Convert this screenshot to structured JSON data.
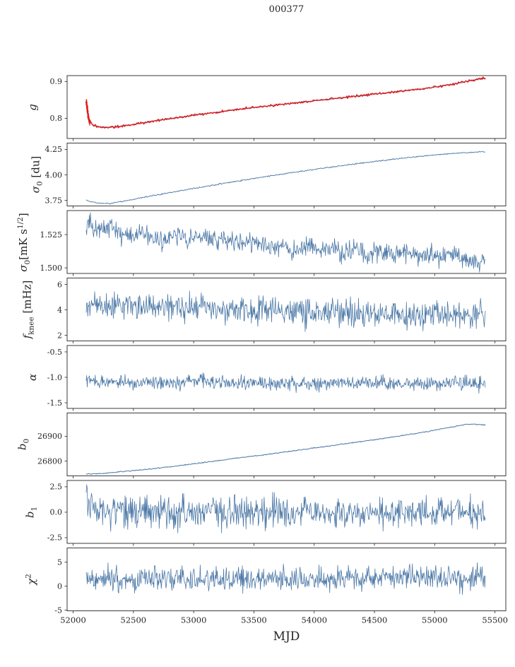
{
  "title": "000377",
  "xlabel": "MJD",
  "colors": {
    "line_blue": "#4d79a7",
    "data_red": "#df1b1b",
    "axis": "#262626",
    "background": "#ffffff"
  },
  "chart_data": {
    "type": "line",
    "title": "000377",
    "xlabel": "MJD",
    "x_lim": [
      51950,
      55590
    ],
    "x_ticks": [
      52000,
      52500,
      53000,
      53500,
      54000,
      54500,
      55000,
      55500
    ],
    "x_data_range": [
      52108,
      55420
    ],
    "panels": [
      {
        "name": "g",
        "ylabel": "g",
        "ylabel_html": "<i>g</i>",
        "ylim": [
          0.745,
          0.916
        ],
        "yticks": [
          0.8,
          0.9
        ],
        "ytick_labels": [
          "0.8",
          "0.9"
        ],
        "series": [
          {
            "name": "gain-fit",
            "color": "#4d79a7",
            "lw": 1.0,
            "noise": 0.0007,
            "n": 520,
            "trend": [
              [
                52108,
                0.84
              ],
              [
                52120,
                0.815
              ],
              [
                52135,
                0.795
              ],
              [
                52160,
                0.783
              ],
              [
                52200,
                0.7775
              ],
              [
                52260,
                0.7755
              ],
              [
                52330,
                0.776
              ],
              [
                52420,
                0.779
              ],
              [
                52520,
                0.7845
              ],
              [
                52650,
                0.7915
              ],
              [
                52800,
                0.799
              ],
              [
                52950,
                0.806
              ],
              [
                53100,
                0.8125
              ],
              [
                53250,
                0.819
              ],
              [
                53400,
                0.825
              ],
              [
                53550,
                0.831
              ],
              [
                53700,
                0.8365
              ],
              [
                53850,
                0.842
              ],
              [
                54000,
                0.8475
              ],
              [
                54150,
                0.853
              ],
              [
                54300,
                0.8585
              ],
              [
                54450,
                0.864
              ],
              [
                54600,
                0.8695
              ],
              [
                54750,
                0.8745
              ],
              [
                54900,
                0.88
              ],
              [
                55000,
                0.8845
              ],
              [
                55100,
                0.89
              ],
              [
                55180,
                0.8945
              ],
              [
                55260,
                0.9
              ],
              [
                55330,
                0.9045
              ],
              [
                55420,
                0.909
              ]
            ]
          },
          {
            "name": "gain-data",
            "color": "#df1b1b",
            "lw": 1.4,
            "noise": 0.0016,
            "n": 520,
            "trend": [
              [
                52108,
                0.84
              ],
              [
                52120,
                0.815
              ],
              [
                52135,
                0.795
              ],
              [
                52160,
                0.783
              ],
              [
                52200,
                0.7775
              ],
              [
                52260,
                0.7755
              ],
              [
                52330,
                0.776
              ],
              [
                52420,
                0.779
              ],
              [
                52520,
                0.7845
              ],
              [
                52650,
                0.7915
              ],
              [
                52800,
                0.799
              ],
              [
                52950,
                0.806
              ],
              [
                53100,
                0.8125
              ],
              [
                53250,
                0.819
              ],
              [
                53400,
                0.825
              ],
              [
                53550,
                0.831
              ],
              [
                53700,
                0.8365
              ],
              [
                53850,
                0.842
              ],
              [
                54000,
                0.8475
              ],
              [
                54150,
                0.853
              ],
              [
                54300,
                0.8585
              ],
              [
                54450,
                0.864
              ],
              [
                54600,
                0.8695
              ],
              [
                54750,
                0.8745
              ],
              [
                54900,
                0.88
              ],
              [
                55000,
                0.8845
              ],
              [
                55100,
                0.89
              ],
              [
                55180,
                0.8945
              ],
              [
                55260,
                0.9
              ],
              [
                55330,
                0.9045
              ],
              [
                55420,
                0.909
              ]
            ],
            "errorbars": [
              [
                52109,
                0.843,
                0.009
              ],
              [
                52112,
                0.838,
                0.013
              ],
              [
                52115,
                0.831,
                0.015
              ],
              [
                52118,
                0.824,
                0.012
              ],
              [
                52121,
                0.817,
                0.017
              ],
              [
                52124,
                0.81,
                0.012
              ],
              [
                52127,
                0.804,
                0.01
              ],
              [
                52130,
                0.798,
                0.009
              ],
              [
                52134,
                0.792,
                0.008
              ],
              [
                52138,
                0.787,
                0.007
              ]
            ]
          }
        ]
      },
      {
        "name": "sigma0-du",
        "ylabel": "sigma_0 [du]",
        "ylabel_html": "<i>σ</i><sub>0</sub> <span class=\"up\">[du]</span>",
        "ylim": [
          3.695,
          4.312
        ],
        "yticks": [
          3.75,
          4.0,
          4.25
        ],
        "ytick_labels": [
          "3.75",
          "4.00",
          "4.25"
        ],
        "series": [
          {
            "name": "sigma0-du",
            "color": "#4d79a7",
            "lw": 0.9,
            "noise": 0.003,
            "n": 650,
            "trend": [
              [
                52108,
                3.75
              ],
              [
                52150,
                3.735
              ],
              [
                52220,
                3.722
              ],
              [
                52300,
                3.718
              ],
              [
                52600,
                3.783
              ],
              [
                52900,
                3.846
              ],
              [
                53200,
                3.907
              ],
              [
                53500,
                3.965
              ],
              [
                53800,
                4.019
              ],
              [
                54100,
                4.07
              ],
              [
                54400,
                4.117
              ],
              [
                54700,
                4.16
              ],
              [
                55000,
                4.196
              ],
              [
                55200,
                4.215
              ],
              [
                55420,
                4.228
              ]
            ]
          }
        ]
      },
      {
        "name": "sigma0-mk",
        "ylabel": "sigma_0 [mK s^1/2]",
        "ylabel_html": "<i>σ</i><sub>0</sub><span class=\"up\">[mK s<sup>1/2</sup>]</span>",
        "ylim": [
          1.4958,
          1.5431
        ],
        "yticks": [
          1.5,
          1.525
        ],
        "ytick_labels": [
          "1.500",
          "1.525"
        ],
        "series": [
          {
            "name": "sigma0-mk",
            "color": "#4d79a7",
            "lw": 0.8,
            "noise": 0.0035,
            "n": 750,
            "trend": [
              [
                52108,
                1.528
              ],
              [
                52128,
                1.5355
              ],
              [
                52160,
                1.5295
              ],
              [
                52230,
                1.529
              ],
              [
                52300,
                1.531
              ],
              [
                52380,
                1.526
              ],
              [
                52470,
                1.522
              ],
              [
                52560,
                1.527
              ],
              [
                52650,
                1.523
              ],
              [
                52750,
                1.52
              ],
              [
                52850,
                1.5245
              ],
              [
                52950,
                1.521
              ],
              [
                53050,
                1.5235
              ],
              [
                53150,
                1.519
              ],
              [
                53250,
                1.5215
              ],
              [
                53350,
                1.518
              ],
              [
                53450,
                1.5205
              ],
              [
                53550,
                1.517
              ],
              [
                53650,
                1.5145
              ],
              [
                53750,
                1.517
              ],
              [
                53850,
                1.5135
              ],
              [
                53950,
                1.516
              ],
              [
                54050,
                1.5125
              ],
              [
                54150,
                1.515
              ],
              [
                54250,
                1.5115
              ],
              [
                54350,
                1.5135
              ],
              [
                54450,
                1.51
              ],
              [
                54550,
                1.512
              ],
              [
                54650,
                1.509
              ],
              [
                54750,
                1.511
              ],
              [
                54850,
                1.5075
              ],
              [
                54950,
                1.51
              ],
              [
                55050,
                1.5065
              ],
              [
                55150,
                1.511
              ],
              [
                55250,
                1.506
              ],
              [
                55330,
                1.503
              ],
              [
                55420,
                1.506
              ]
            ]
          }
        ]
      },
      {
        "name": "fknee",
        "ylabel": "f_knee [mHz]",
        "ylabel_html": "<i>f</i><sub>knee</sub> <span class=\"up\">[mHz]</span>",
        "ylim": [
          1.56,
          6.5
        ],
        "yticks": [
          2,
          4,
          6
        ],
        "ytick_labels": [
          "2",
          "4",
          "6"
        ],
        "series": [
          {
            "name": "fknee",
            "color": "#4d79a7",
            "lw": 0.8,
            "noise": 0.55,
            "n": 750,
            "trend": [
              [
                52108,
                4.45
              ],
              [
                52300,
                4.35
              ],
              [
                52600,
                4.28
              ],
              [
                52900,
                4.18
              ],
              [
                53200,
                4.05
              ],
              [
                53500,
                3.95
              ],
              [
                53800,
                3.85
              ],
              [
                54100,
                3.75
              ],
              [
                54400,
                3.68
              ],
              [
                54700,
                3.62
              ],
              [
                55000,
                3.58
              ],
              [
                55200,
                3.56
              ],
              [
                55420,
                3.55
              ]
            ]
          }
        ]
      },
      {
        "name": "alpha",
        "ylabel": "alpha",
        "ylabel_html": "<i>α</i>",
        "ylim": [
          -1.611,
          -0.375
        ],
        "yticks": [
          -1.5,
          -1.0,
          -0.5
        ],
        "ytick_labels": [
          "-1.5",
          "-1.0",
          "-0.5"
        ],
        "series": [
          {
            "name": "alpha",
            "color": "#4d79a7",
            "lw": 0.8,
            "noise": 0.068,
            "n": 750,
            "trend": [
              [
                52108,
                -1.09
              ],
              [
                53000,
                -1.1
              ],
              [
                54000,
                -1.11
              ],
              [
                55420,
                -1.12
              ]
            ]
          }
        ]
      },
      {
        "name": "b0",
        "ylabel": "b_0",
        "ylabel_html": "<i>b</i><sub>0</sub>",
        "ylim": [
          26740,
          26994
        ],
        "yticks": [
          26800,
          26900
        ],
        "ytick_labels": [
          "26800",
          "26900"
        ],
        "series": [
          {
            "name": "b0",
            "color": "#4d79a7",
            "lw": 1.0,
            "noise": 0.9,
            "n": 650,
            "trend": [
              [
                52108,
                26747
              ],
              [
                52250,
                26750
              ],
              [
                52400,
                26757
              ],
              [
                52550,
                26763
              ],
              [
                52700,
                26771
              ],
              [
                52850,
                26779
              ],
              [
                53000,
                26789
              ],
              [
                53150,
                26798
              ],
              [
                53300,
                26808
              ],
              [
                53450,
                26817
              ],
              [
                53600,
                26826
              ],
              [
                53750,
                26836
              ],
              [
                53900,
                26846
              ],
              [
                54050,
                26856
              ],
              [
                54200,
                26866
              ],
              [
                54350,
                26876
              ],
              [
                54500,
                26886
              ],
              [
                54650,
                26897
              ],
              [
                54800,
                26908
              ],
              [
                54950,
                26920
              ],
              [
                55080,
                26932
              ],
              [
                55180,
                26941
              ],
              [
                55260,
                26948
              ],
              [
                55320,
                26950
              ],
              [
                55370,
                26947
              ],
              [
                55420,
                26946
              ]
            ]
          }
        ]
      },
      {
        "name": "b1",
        "ylabel": "b_1",
        "ylabel_html": "<i>b</i><sub>1</sub>",
        "ylim": [
          -3.06,
          3.12
        ],
        "yticks": [
          -2.5,
          0.0,
          2.5
        ],
        "ytick_labels": [
          "-2.5",
          "0.0",
          "2.5"
        ],
        "series": [
          {
            "name": "b1",
            "color": "#4d79a7",
            "lw": 0.8,
            "noise": 0.78,
            "n": 750,
            "trend": [
              [
                52108,
                1.9
              ],
              [
                52140,
                1.0
              ],
              [
                52200,
                0.45
              ],
              [
                52300,
                0.18
              ],
              [
                52450,
                0.05
              ],
              [
                52700,
                0.0
              ],
              [
                55420,
                0.0
              ]
            ]
          }
        ]
      },
      {
        "name": "chi2",
        "ylabel": "chi^2",
        "ylabel_html": "<i>χ</i><sup>2</sup>",
        "ylim": [
          -5.14,
          7.95
        ],
        "yticks": [
          -5,
          0,
          5
        ],
        "ytick_labels": [
          "-5",
          "0",
          "5"
        ],
        "series": [
          {
            "name": "chi2",
            "color": "#4d79a7",
            "lw": 0.8,
            "noise": 1.25,
            "n": 750,
            "trend": [
              [
                52108,
                1.2
              ],
              [
                53000,
                1.5
              ],
              [
                54200,
                1.6
              ],
              [
                55420,
                1.9
              ]
            ]
          }
        ]
      }
    ]
  }
}
